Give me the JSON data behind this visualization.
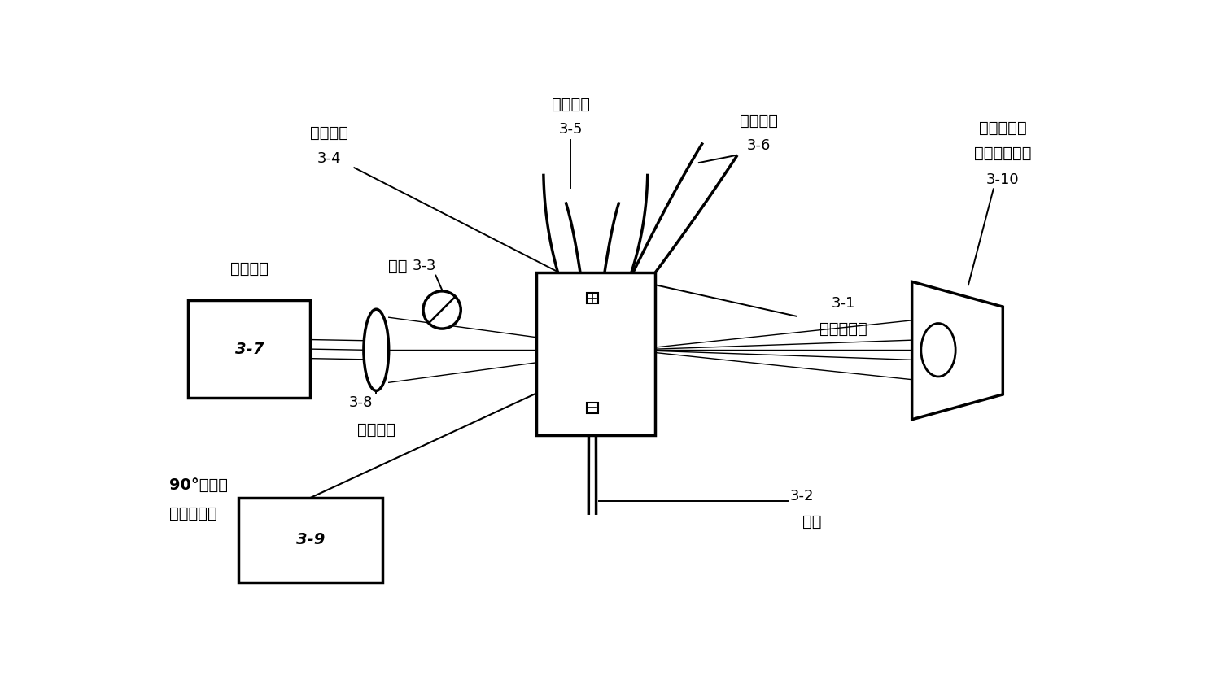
{
  "bg_color": "#ffffff",
  "lc": "#000000",
  "fig_width": 14.82,
  "fig_height": 8.52,
  "labels": {
    "sheath_flow": "鳘套流束",
    "sheath_flow_id": "3-5",
    "sample_flow": "样本流束",
    "sample_flow_id": "3-6",
    "micropore_current": "微孔电流",
    "micropore_current_id": "3-4",
    "electrode": "电极",
    "electrode_id": "3-3",
    "laser_source": "激光光源",
    "laser_source_id": "3-7",
    "focusing_lens": "聚焦透镜",
    "focusing_lens_id": "3-8",
    "forward_scatter1": "前向光散射",
    "forward_scatter2": "和轴向光损失",
    "forward_scatter_id": "3-10",
    "flow_cell_box": "流式细胞盒",
    "flow_cell_box_id": "3-1",
    "micropore": "微孔",
    "micropore_id": "3-2",
    "side_scatter1": "90°光散射",
    "side_scatter2": "或荧光探测",
    "side_scatter_id": "3-9"
  }
}
